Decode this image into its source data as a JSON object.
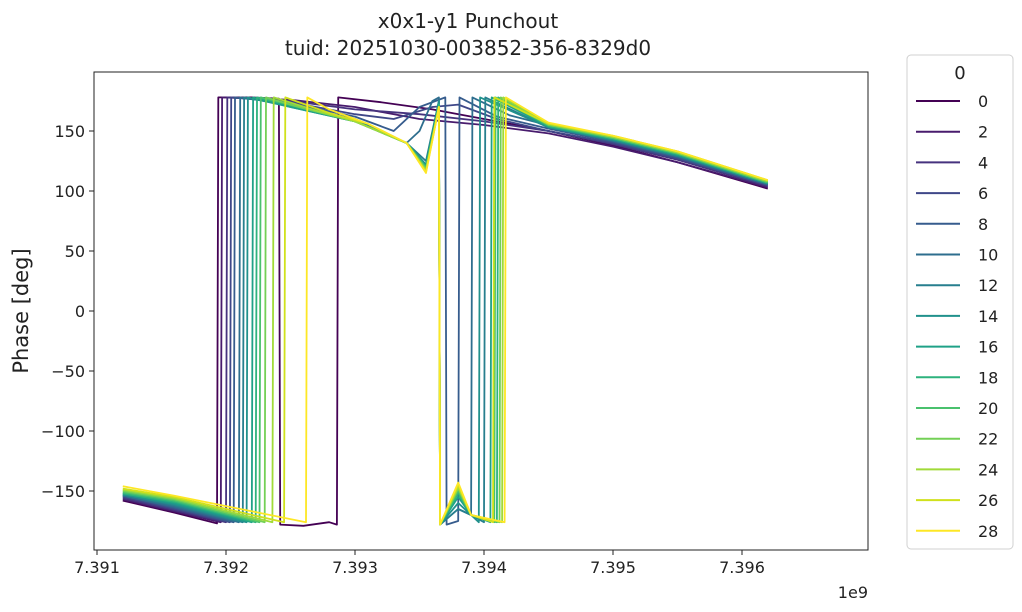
{
  "chart_data": {
    "type": "line",
    "title": "x0x1-y1 Punchout",
    "subtitle": "tuid: 20251030-003852-356-8329d0",
    "xlabel": "",
    "ylabel": "Phase [deg]",
    "x_offset_label": "1e9",
    "xlim": [
      7.39098,
      7.39646
    ],
    "ylim": [
      -195,
      197
    ],
    "xticks": [
      7.391,
      7.392,
      7.393,
      7.394,
      7.395,
      7.396
    ],
    "xtick_labels": [
      "7.391",
      "7.392",
      "7.393",
      "7.394",
      "7.395",
      "7.396"
    ],
    "yticks": [
      150,
      100,
      50,
      0,
      -50,
      -100,
      -150
    ],
    "ytick_labels": [
      "150",
      "100",
      "50",
      "0",
      "−50",
      "−100",
      "−150"
    ],
    "grid": false,
    "legend": {
      "title": "0",
      "placement": "outside-right"
    },
    "series": [
      {
        "name": "0",
        "color": "#440154",
        "x": [
          7.3912,
          7.3916,
          7.39193,
          7.39194,
          7.3922,
          7.39241,
          7.39242,
          7.3926,
          7.3928,
          7.39286,
          7.39287,
          7.3932,
          7.3936,
          7.394,
          7.3945,
          7.395,
          7.3955,
          7.3962
        ],
        "y": [
          -158,
          -168,
          -177,
          178,
          178,
          177,
          -178,
          -179,
          -176,
          -178,
          178,
          174,
          168,
          160,
          150,
          138,
          124,
          102
        ]
      },
      {
        "name": "2",
        "color": "#481b6d",
        "x": [
          7.3912,
          7.3916,
          7.39196,
          7.39197,
          7.3925,
          7.393,
          7.3935,
          7.394,
          7.3945,
          7.395,
          7.3955,
          7.3962
        ],
        "y": [
          -157,
          -167,
          -176,
          178,
          176,
          170,
          160,
          155,
          148,
          137,
          124,
          103
        ]
      },
      {
        "name": "4",
        "color": "#46327e",
        "x": [
          7.3912,
          7.3916,
          7.392,
          7.39201,
          7.3925,
          7.393,
          7.3935,
          7.394,
          7.3945,
          7.395,
          7.3955,
          7.3962
        ],
        "y": [
          -156,
          -166,
          -176,
          178,
          175,
          168,
          164,
          158,
          150,
          139,
          126,
          104
        ]
      },
      {
        "name": "6",
        "color": "#3f4788",
        "x": [
          7.3912,
          7.3916,
          7.39203,
          7.39204,
          7.3925,
          7.393,
          7.3933,
          7.3936,
          7.3938,
          7.3941,
          7.3945,
          7.395,
          7.3955,
          7.3962
        ],
        "y": [
          -155,
          -165,
          -176,
          178,
          174,
          164,
          160,
          170,
          172,
          160,
          150,
          140,
          127,
          105
        ]
      },
      {
        "name": "8",
        "color": "#365c8d",
        "x": [
          7.3912,
          7.3916,
          7.39206,
          7.39207,
          7.3925,
          7.393,
          7.3933,
          7.3935,
          7.3937,
          7.39371,
          7.3938,
          7.39381,
          7.3941,
          7.3945,
          7.395,
          7.3955,
          7.3962
        ],
        "y": [
          -154,
          -164,
          -176,
          178,
          173,
          162,
          150,
          170,
          178,
          -178,
          -175,
          178,
          162,
          152,
          141,
          128,
          105
        ]
      },
      {
        "name": "10",
        "color": "#2e6e8e",
        "x": [
          7.3912,
          7.3916,
          7.3921,
          7.39211,
          7.3925,
          7.393,
          7.3934,
          7.3935,
          7.3936,
          7.39365,
          7.39366,
          7.3938,
          7.3939,
          7.39391,
          7.3942,
          7.3946,
          7.395,
          7.3955,
          7.3962
        ],
        "y": [
          -154,
          -163,
          -176,
          178,
          172,
          160,
          140,
          150,
          175,
          178,
          -178,
          -165,
          -170,
          178,
          163,
          152,
          142,
          129,
          106
        ]
      },
      {
        "name": "12",
        "color": "#277f8e",
        "x": [
          7.3912,
          7.3916,
          7.39213,
          7.39214,
          7.3925,
          7.393,
          7.3934,
          7.39355,
          7.39365,
          7.39366,
          7.3938,
          7.3939,
          7.394,
          7.39401,
          7.3945,
          7.395,
          7.3955,
          7.3962
        ],
        "y": [
          -153,
          -162,
          -176,
          178,
          171,
          159,
          140,
          125,
          175,
          -178,
          -165,
          -170,
          -176,
          178,
          153,
          142,
          129,
          106
        ]
      },
      {
        "name": "14",
        "color": "#21918c",
        "x": [
          7.3912,
          7.3916,
          7.39216,
          7.39217,
          7.3925,
          7.393,
          7.3934,
          7.39355,
          7.39365,
          7.39366,
          7.3938,
          7.3939,
          7.39396,
          7.39397,
          7.3945,
          7.395,
          7.3955,
          7.3962
        ],
        "y": [
          -153,
          -161,
          -176,
          178,
          170,
          158,
          140,
          122,
          175,
          -178,
          -160,
          -170,
          -176,
          178,
          153,
          143,
          130,
          106
        ]
      },
      {
        "name": "16",
        "color": "#1fa187",
        "x": [
          7.3912,
          7.3916,
          7.3922,
          7.39221,
          7.3925,
          7.393,
          7.3934,
          7.39355,
          7.39365,
          7.39366,
          7.3938,
          7.3939,
          7.39405,
          7.39406,
          7.3945,
          7.395,
          7.3955,
          7.3962
        ],
        "y": [
          -152,
          -160,
          -176,
          178,
          170,
          158,
          140,
          120,
          172,
          -178,
          -155,
          -170,
          -176,
          178,
          154,
          143,
          130,
          107
        ]
      },
      {
        "name": "18",
        "color": "#2db27d",
        "x": [
          7.3912,
          7.3916,
          7.39223,
          7.39224,
          7.3926,
          7.393,
          7.3934,
          7.39355,
          7.39365,
          7.39366,
          7.3938,
          7.3939,
          7.3941,
          7.39411,
          7.3945,
          7.395,
          7.3955,
          7.3962
        ],
        "y": [
          -152,
          -159,
          -176,
          178,
          169,
          158,
          140,
          120,
          172,
          -178,
          -152,
          -170,
          -176,
          178,
          154,
          144,
          131,
          107
        ]
      },
      {
        "name": "20",
        "color": "#4ac16d",
        "x": [
          7.3912,
          7.3916,
          7.39226,
          7.39227,
          7.3926,
          7.393,
          7.3934,
          7.39355,
          7.39365,
          7.39366,
          7.3938,
          7.3939,
          7.39408,
          7.39409,
          7.3945,
          7.395,
          7.3955,
          7.3962
        ],
        "y": [
          -151,
          -158,
          -176,
          178,
          169,
          158,
          140,
          119,
          170,
          -178,
          -150,
          -170,
          -176,
          178,
          155,
          144,
          131,
          107
        ]
      },
      {
        "name": "22",
        "color": "#73d056",
        "x": [
          7.3912,
          7.3916,
          7.3923,
          7.39231,
          7.3926,
          7.393,
          7.3934,
          7.39355,
          7.39365,
          7.39366,
          7.3938,
          7.3939,
          7.39412,
          7.39413,
          7.3945,
          7.395,
          7.3955,
          7.3962
        ],
        "y": [
          -150,
          -157,
          -176,
          178,
          169,
          158,
          140,
          118,
          170,
          -178,
          -148,
          -170,
          -176,
          178,
          155,
          145,
          132,
          108
        ]
      },
      {
        "name": "24",
        "color": "#a0da39",
        "x": [
          7.3912,
          7.3916,
          7.39236,
          7.39237,
          7.3927,
          7.393,
          7.3934,
          7.39355,
          7.39365,
          7.39366,
          7.3938,
          7.3939,
          7.39414,
          7.39415,
          7.3945,
          7.395,
          7.3955,
          7.3962
        ],
        "y": [
          -149,
          -156,
          -176,
          178,
          167,
          158,
          140,
          117,
          170,
          -178,
          -147,
          -170,
          -176,
          178,
          156,
          145,
          132,
          108
        ]
      },
      {
        "name": "26",
        "color": "#d0e11c",
        "x": [
          7.3912,
          7.3916,
          7.39245,
          7.39246,
          7.3928,
          7.3931,
          7.3934,
          7.39355,
          7.39365,
          7.39366,
          7.3938,
          7.3939,
          7.39407,
          7.39408,
          7.3945,
          7.395,
          7.3955,
          7.3962
        ],
        "y": [
          -148,
          -155,
          -176,
          178,
          165,
          156,
          140,
          116,
          170,
          -178,
          -145,
          -170,
          -176,
          178,
          156,
          146,
          133,
          109
        ]
      },
      {
        "name": "28",
        "color": "#fde725",
        "x": [
          7.3912,
          7.3916,
          7.39262,
          7.39263,
          7.3928,
          7.3931,
          7.3934,
          7.39355,
          7.39365,
          7.39366,
          7.3938,
          7.3939,
          7.39416,
          7.39417,
          7.3945,
          7.395,
          7.3955,
          7.3962
        ],
        "y": [
          -146,
          -154,
          -176,
          178,
          168,
          156,
          140,
          115,
          170,
          -178,
          -143,
          -170,
          -176,
          178,
          157,
          146,
          133,
          109
        ]
      }
    ]
  }
}
